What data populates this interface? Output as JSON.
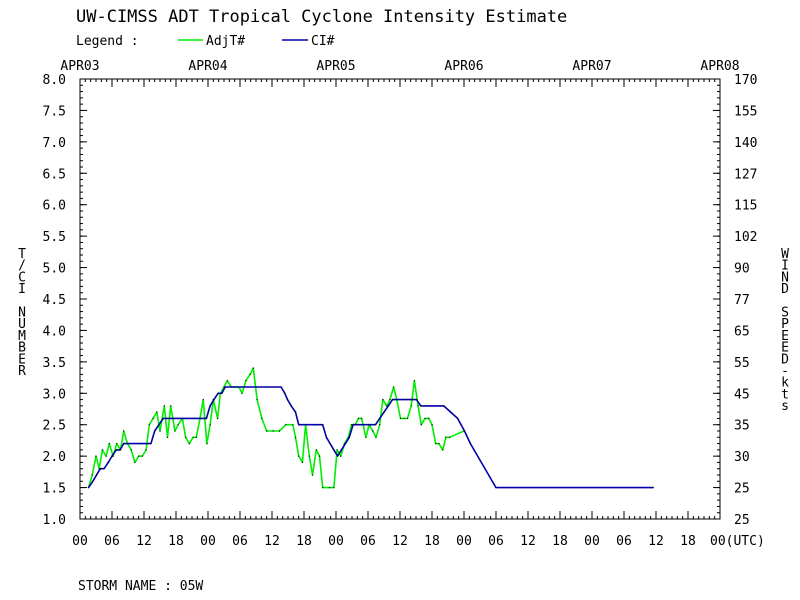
{
  "chart_data": {
    "type": "line",
    "title": "UW-CIMSS ADT Tropical Cyclone Intensity Estimate",
    "legend": {
      "label": "Legend :",
      "placement": "top-left",
      "entries": [
        {
          "name": "AdjT#",
          "color": "#00ee00"
        },
        {
          "name": "CI#",
          "color": "#0000aa"
        }
      ]
    },
    "x_unit": "hours from APR03 00 UTC",
    "xlim": [
      0,
      120
    ],
    "date_ticks": [
      {
        "t": 0,
        "label": "APR03"
      },
      {
        "t": 24,
        "label": "APR04"
      },
      {
        "t": 48,
        "label": "APR05"
      },
      {
        "t": 72,
        "label": "APR06"
      },
      {
        "t": 96,
        "label": "APR07"
      },
      {
        "t": 120,
        "label": "APR08"
      }
    ],
    "hour_ticks": [
      {
        "t": 0,
        "label": "00"
      },
      {
        "t": 6,
        "label": "06"
      },
      {
        "t": 12,
        "label": "12"
      },
      {
        "t": 18,
        "label": "18"
      },
      {
        "t": 24,
        "label": "00"
      },
      {
        "t": 30,
        "label": "06"
      },
      {
        "t": 36,
        "label": "12"
      },
      {
        "t": 42,
        "label": "18"
      },
      {
        "t": 48,
        "label": "00"
      },
      {
        "t": 54,
        "label": "06"
      },
      {
        "t": 60,
        "label": "12"
      },
      {
        "t": 66,
        "label": "18"
      },
      {
        "t": 72,
        "label": "00"
      },
      {
        "t": 78,
        "label": "06"
      },
      {
        "t": 84,
        "label": "12"
      },
      {
        "t": 90,
        "label": "18"
      },
      {
        "t": 96,
        "label": "00"
      },
      {
        "t": 102,
        "label": "06"
      },
      {
        "t": 108,
        "label": "12"
      },
      {
        "t": 114,
        "label": "18"
      },
      {
        "t": 120,
        "label": "00(UTC)"
      }
    ],
    "ylabel": "T/CI NUMBER",
    "ylim": [
      1.0,
      8.0
    ],
    "yticks": [
      "1.0",
      "1.5",
      "2.0",
      "2.5",
      "3.0",
      "3.5",
      "4.0",
      "4.5",
      "5.0",
      "5.5",
      "6.0",
      "6.5",
      "7.0",
      "7.5",
      "8.0"
    ],
    "y2label": "WIND SPEED-kts",
    "y2ticks": [
      "25",
      "25",
      "30",
      "35",
      "45",
      "55",
      "65",
      "77",
      "90",
      "102",
      "115",
      "127",
      "140",
      "155",
      "170"
    ],
    "grid": false,
    "series": [
      {
        "name": "AdjT#",
        "color": "#00ee00",
        "points": [
          [
            1.6,
            1.5
          ],
          [
            2.3,
            1.7
          ],
          [
            3.0,
            2.0
          ],
          [
            3.6,
            1.8
          ],
          [
            4.2,
            2.1
          ],
          [
            4.9,
            2.0
          ],
          [
            5.5,
            2.2
          ],
          [
            6.2,
            2.0
          ],
          [
            6.9,
            2.2
          ],
          [
            7.6,
            2.1
          ],
          [
            8.2,
            2.4
          ],
          [
            8.9,
            2.2
          ],
          [
            9.6,
            2.1
          ],
          [
            10.3,
            1.9
          ],
          [
            11.0,
            2.0
          ],
          [
            11.7,
            2.0
          ],
          [
            12.4,
            2.1
          ],
          [
            13.0,
            2.5
          ],
          [
            13.7,
            2.6
          ],
          [
            14.4,
            2.7
          ],
          [
            15.0,
            2.4
          ],
          [
            15.8,
            2.8
          ],
          [
            16.4,
            2.3
          ],
          [
            17.0,
            2.8
          ],
          [
            17.8,
            2.4
          ],
          [
            18.4,
            2.5
          ],
          [
            19.2,
            2.6
          ],
          [
            19.8,
            2.3
          ],
          [
            20.5,
            2.2
          ],
          [
            21.2,
            2.3
          ],
          [
            21.8,
            2.3
          ],
          [
            22.5,
            2.6
          ],
          [
            23.1,
            2.9
          ],
          [
            23.8,
            2.2
          ],
          [
            24.4,
            2.5
          ],
          [
            25.0,
            2.9
          ],
          [
            25.8,
            2.6
          ],
          [
            26.3,
            3.0
          ],
          [
            27.0,
            3.1
          ],
          [
            27.6,
            3.2
          ],
          [
            28.4,
            3.1
          ],
          [
            29.0,
            3.1
          ],
          [
            29.8,
            3.1
          ],
          [
            30.4,
            3.0
          ],
          [
            31.1,
            3.2
          ],
          [
            31.9,
            3.3
          ],
          [
            32.5,
            3.4
          ],
          [
            33.2,
            2.9
          ],
          [
            34.1,
            2.6
          ],
          [
            35.0,
            2.4
          ],
          [
            36.2,
            2.4
          ],
          [
            37.4,
            2.4
          ],
          [
            38.6,
            2.5
          ],
          [
            39.9,
            2.5
          ],
          [
            40.4,
            2.3
          ],
          [
            41.0,
            2.0
          ],
          [
            41.7,
            1.9
          ],
          [
            42.3,
            2.5
          ],
          [
            43.0,
            2.0
          ],
          [
            43.6,
            1.7
          ],
          [
            44.3,
            2.1
          ],
          [
            44.9,
            2.0
          ],
          [
            45.5,
            1.5
          ],
          [
            46.8,
            1.5
          ],
          [
            47.6,
            1.5
          ],
          [
            48.2,
            2.1
          ],
          [
            48.9,
            2.0
          ],
          [
            49.6,
            2.2
          ],
          [
            50.3,
            2.3
          ],
          [
            50.9,
            2.5
          ],
          [
            51.6,
            2.5
          ],
          [
            52.2,
            2.6
          ],
          [
            52.8,
            2.6
          ],
          [
            53.6,
            2.3
          ],
          [
            54.2,
            2.5
          ],
          [
            54.9,
            2.4
          ],
          [
            55.5,
            2.3
          ],
          [
            56.2,
            2.5
          ],
          [
            56.8,
            2.9
          ],
          [
            57.5,
            2.8
          ],
          [
            58.1,
            2.9
          ],
          [
            58.8,
            3.1
          ],
          [
            59.4,
            2.9
          ],
          [
            60.1,
            2.6
          ],
          [
            60.8,
            2.6
          ],
          [
            61.4,
            2.6
          ],
          [
            62.1,
            2.8
          ],
          [
            62.7,
            3.2
          ],
          [
            63.4,
            2.8
          ],
          [
            64.0,
            2.5
          ],
          [
            64.7,
            2.6
          ],
          [
            65.4,
            2.6
          ],
          [
            66.0,
            2.5
          ],
          [
            66.7,
            2.2
          ],
          [
            67.3,
            2.2
          ],
          [
            68.0,
            2.1
          ],
          [
            68.6,
            2.3
          ],
          [
            69.3,
            2.3
          ],
          [
            72.0,
            2.4
          ]
        ]
      },
      {
        "name": "CI#",
        "color": "#0000aa",
        "points": [
          [
            1.6,
            1.5
          ],
          [
            2.4,
            1.6
          ],
          [
            3.1,
            1.7
          ],
          [
            3.8,
            1.8
          ],
          [
            4.5,
            1.8
          ],
          [
            5.3,
            1.9
          ],
          [
            6.0,
            2.0
          ],
          [
            6.8,
            2.1
          ],
          [
            7.5,
            2.1
          ],
          [
            8.2,
            2.2
          ],
          [
            13.3,
            2.2
          ],
          [
            14.0,
            2.4
          ],
          [
            14.8,
            2.5
          ],
          [
            15.6,
            2.6
          ],
          [
            16.3,
            2.6
          ],
          [
            23.7,
            2.6
          ],
          [
            24.4,
            2.8
          ],
          [
            25.1,
            2.9
          ],
          [
            25.9,
            3.0
          ],
          [
            26.6,
            3.0
          ],
          [
            27.2,
            3.1
          ],
          [
            37.7,
            3.1
          ],
          [
            38.4,
            3.0
          ],
          [
            38.9,
            2.9
          ],
          [
            39.6,
            2.8
          ],
          [
            40.4,
            2.7
          ],
          [
            41.0,
            2.5
          ],
          [
            45.5,
            2.5
          ],
          [
            46.2,
            2.3
          ],
          [
            46.9,
            2.2
          ],
          [
            47.6,
            2.1
          ],
          [
            48.3,
            2.0
          ],
          [
            50.5,
            2.3
          ],
          [
            51.2,
            2.5
          ],
          [
            55.4,
            2.5
          ],
          [
            56.2,
            2.6
          ],
          [
            57.0,
            2.7
          ],
          [
            57.8,
            2.8
          ],
          [
            58.6,
            2.9
          ],
          [
            61.8,
            2.9
          ],
          [
            62.4,
            2.9
          ],
          [
            63.1,
            2.9
          ],
          [
            63.9,
            2.8
          ],
          [
            68.2,
            2.8
          ],
          [
            69.5,
            2.7
          ],
          [
            70.8,
            2.6
          ],
          [
            72.1,
            2.4
          ],
          [
            73.2,
            2.2
          ],
          [
            78.0,
            1.5
          ],
          [
            107.5,
            1.5
          ]
        ]
      }
    ]
  },
  "footer": {
    "storm_name": "STORM NAME : 05W"
  }
}
